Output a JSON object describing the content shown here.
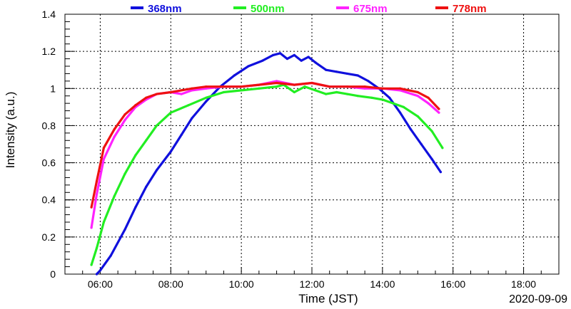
{
  "chart_data": {
    "type": "line",
    "xlabel": "Time (JST)",
    "ylabel": "Intensity (a.u.)",
    "annotation": "2020-09-09",
    "xlim": [
      5.0,
      19.0
    ],
    "ylim": [
      0,
      1.4
    ],
    "x_ticks": [
      6,
      8,
      10,
      12,
      14,
      16,
      18
    ],
    "x_tick_labels": [
      "06:00",
      "08:00",
      "10:00",
      "12:00",
      "14:00",
      "16:00",
      "18:00"
    ],
    "y_ticks": [
      0,
      0.2,
      0.4,
      0.6,
      0.8,
      1,
      1.2,
      1.4
    ],
    "y_tick_labels": [
      "0",
      "0.2",
      "0.4",
      "0.6",
      "0.8",
      "1",
      "1.2",
      "1.4"
    ],
    "grid": true,
    "legend_position": "top",
    "series": [
      {
        "name": "368nm",
        "color": "#1010dd",
        "x": [
          5.9,
          6.0,
          6.3,
          6.7,
          7.0,
          7.3,
          7.6,
          8.0,
          8.3,
          8.6,
          9.0,
          9.4,
          9.8,
          10.2,
          10.6,
          10.9,
          11.1,
          11.3,
          11.5,
          11.7,
          11.9,
          12.1,
          12.4,
          12.7,
          13.0,
          13.3,
          13.6,
          13.9,
          14.2,
          14.5,
          14.8,
          15.1,
          15.4,
          15.65
        ],
        "values": [
          0.0,
          0.02,
          0.1,
          0.24,
          0.36,
          0.47,
          0.56,
          0.66,
          0.75,
          0.84,
          0.93,
          1.01,
          1.07,
          1.12,
          1.15,
          1.18,
          1.19,
          1.16,
          1.18,
          1.15,
          1.17,
          1.14,
          1.1,
          1.09,
          1.08,
          1.07,
          1.04,
          1.0,
          0.95,
          0.87,
          0.78,
          0.7,
          0.62,
          0.55
        ]
      },
      {
        "name": "500nm",
        "color": "#22ee22",
        "x": [
          5.75,
          5.9,
          6.1,
          6.4,
          6.7,
          7.0,
          7.3,
          7.6,
          8.0,
          8.5,
          9.0,
          9.5,
          10.0,
          10.5,
          11.0,
          11.2,
          11.5,
          11.8,
          12.1,
          12.4,
          12.7,
          13.0,
          13.3,
          13.7,
          14.0,
          14.3,
          14.6,
          15.0,
          15.4,
          15.7
        ],
        "values": [
          0.05,
          0.14,
          0.28,
          0.42,
          0.54,
          0.64,
          0.72,
          0.8,
          0.87,
          0.91,
          0.95,
          0.98,
          0.99,
          1.0,
          1.01,
          1.02,
          0.98,
          1.01,
          0.99,
          0.97,
          0.98,
          0.97,
          0.96,
          0.95,
          0.94,
          0.92,
          0.9,
          0.85,
          0.77,
          0.68
        ]
      },
      {
        "name": "675nm",
        "color": "#ff22ff",
        "x": [
          5.75,
          5.9,
          6.1,
          6.4,
          6.7,
          7.0,
          7.3,
          7.6,
          8.0,
          8.3,
          8.6,
          9.0,
          9.5,
          10.0,
          10.5,
          11.0,
          11.5,
          12.0,
          12.5,
          13.0,
          13.5,
          14.0,
          14.5,
          15.0,
          15.3,
          15.6
        ],
        "values": [
          0.25,
          0.43,
          0.62,
          0.74,
          0.83,
          0.9,
          0.94,
          0.97,
          0.98,
          0.97,
          0.99,
          1.0,
          1.01,
          1.01,
          1.02,
          1.04,
          1.02,
          1.03,
          1.01,
          1.01,
          1.0,
          1.0,
          0.99,
          0.96,
          0.92,
          0.87
        ]
      },
      {
        "name": "778nm",
        "color": "#ee1111",
        "x": [
          5.75,
          5.9,
          6.1,
          6.4,
          6.7,
          7.0,
          7.3,
          7.6,
          8.0,
          8.3,
          8.6,
          9.0,
          9.5,
          10.0,
          10.5,
          11.0,
          11.5,
          12.0,
          12.5,
          13.0,
          13.5,
          14.0,
          14.5,
          15.0,
          15.3,
          15.6
        ],
        "values": [
          0.36,
          0.5,
          0.68,
          0.78,
          0.86,
          0.91,
          0.95,
          0.97,
          0.98,
          0.99,
          1.0,
          1.01,
          1.01,
          1.01,
          1.02,
          1.03,
          1.02,
          1.03,
          1.01,
          1.01,
          1.01,
          1.0,
          1.0,
          0.98,
          0.95,
          0.89
        ]
      }
    ]
  }
}
